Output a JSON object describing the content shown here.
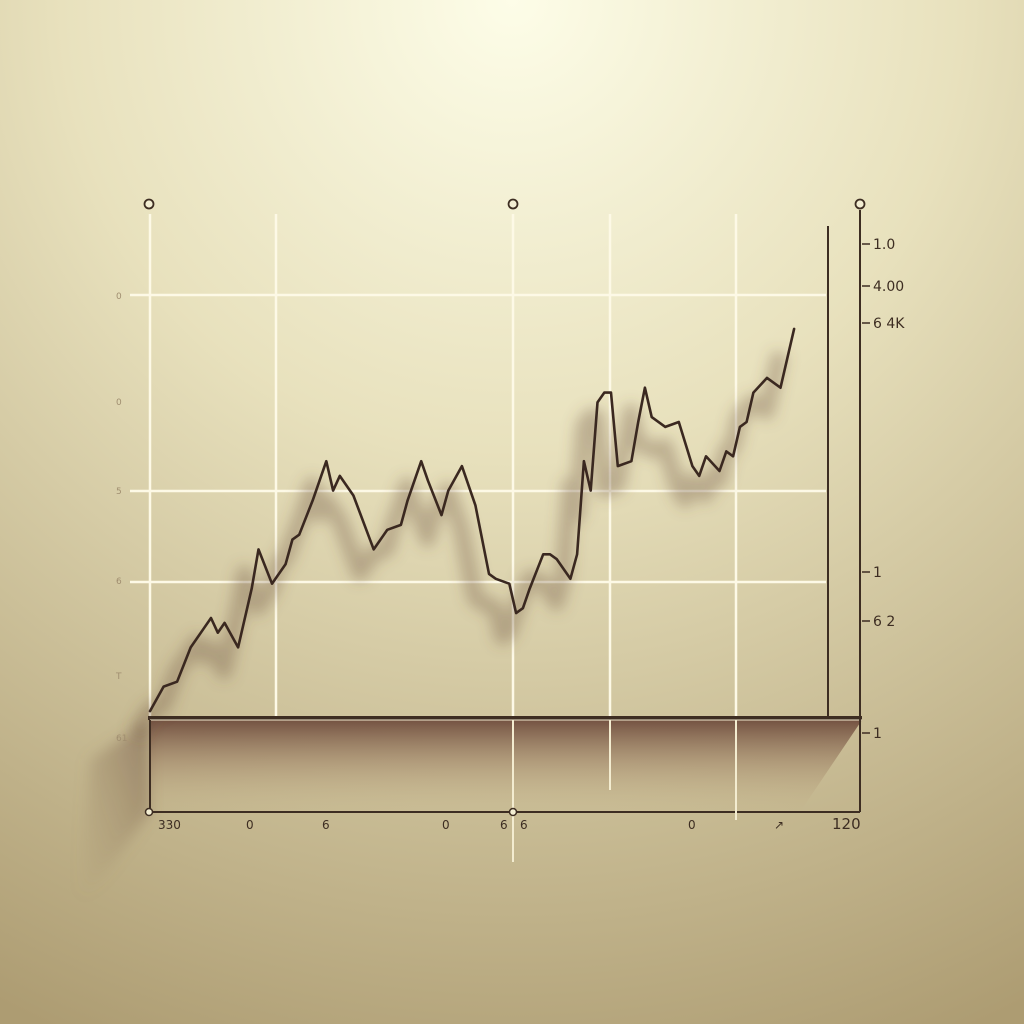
{
  "chart_data": {
    "type": "line",
    "title": "",
    "xlabel": "",
    "ylabel": "",
    "grid": true,
    "legend": "none",
    "xlim": [
      0,
      100
    ],
    "ylim": [
      0,
      100
    ],
    "x_tick_labels": [
      "330",
      "0",
      "6",
      "0",
      "6",
      "6",
      "0",
      "↗",
      "120"
    ],
    "left_tick_labels": [
      "0",
      "0",
      "5",
      "6",
      "T",
      "61"
    ],
    "right_tick_labels": [
      "1.0",
      "4.00",
      "6 4K",
      "1",
      "6 2",
      "1"
    ],
    "series": [
      {
        "x": [
          0,
          2,
          4,
          6,
          8,
          9,
          10,
          11,
          13,
          15,
          16,
          18,
          20,
          21,
          22,
          24,
          26,
          27,
          28,
          30,
          33,
          35,
          37,
          38,
          40,
          41,
          43,
          44,
          46,
          48,
          50,
          51,
          53,
          54,
          55,
          56,
          58,
          59,
          60,
          62,
          63,
          64,
          65,
          66,
          67,
          68,
          69,
          71,
          72,
          73,
          74,
          76,
          78,
          80,
          81,
          82,
          84,
          85,
          86,
          87,
          88,
          89,
          91,
          93,
          94,
          95
        ],
        "y": [
          1,
          6,
          7,
          14,
          18,
          20,
          17,
          19,
          14,
          26,
          34,
          27,
          31,
          36,
          37,
          44,
          52,
          46,
          49,
          45,
          34,
          38,
          39,
          44,
          52,
          48,
          41,
          46,
          51,
          43,
          29,
          28,
          27,
          21,
          22,
          26,
          33,
          33,
          32,
          28,
          33,
          52,
          46,
          64,
          66,
          66,
          51,
          52,
          60,
          67,
          61,
          59,
          60,
          51,
          49,
          53,
          50,
          54,
          53,
          59,
          60,
          66,
          69,
          67,
          73,
          79
        ]
      }
    ],
    "colors": {
      "background_top": "#f9f6d8",
      "background_bottom": "#ad9c70",
      "line": "#3a2820",
      "axis": "#3d2d22",
      "grid": "#fdf9e6"
    }
  }
}
